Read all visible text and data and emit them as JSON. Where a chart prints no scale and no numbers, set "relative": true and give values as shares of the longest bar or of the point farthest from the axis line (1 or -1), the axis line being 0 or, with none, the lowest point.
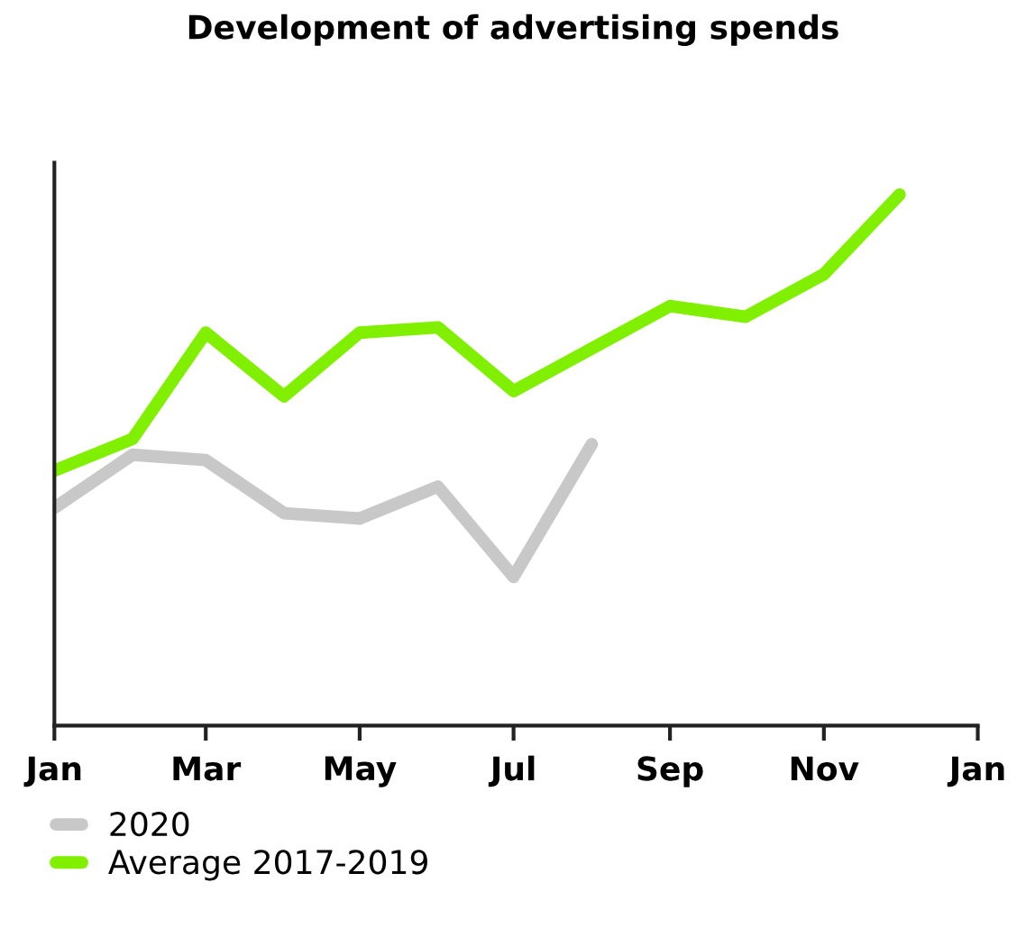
{
  "chart_data": {
    "type": "line",
    "title": "Development of advertising spends",
    "relative": true,
    "x": [
      "2020-01-01",
      "2020-02-01",
      "2020-03-01",
      "2020-04-01",
      "2020-05-01",
      "2020-06-01",
      "2020-07-01",
      "2020-08-01",
      "2020-09-01",
      "2020-10-01",
      "2020-11-01",
      "2020-12-01"
    ],
    "series": [
      {
        "name": "2020",
        "color": "#c8c8c8",
        "values": [
          0.41,
          0.51,
          0.5,
          0.4,
          0.39,
          0.45,
          0.28,
          0.53,
          null,
          null,
          null,
          null
        ]
      },
      {
        "name": "Average 2017-2019",
        "color": "#80f000",
        "values": [
          0.48,
          0.54,
          0.74,
          0.62,
          0.74,
          0.75,
          0.63,
          0.71,
          0.79,
          0.77,
          0.85,
          1
        ]
      }
    ],
    "xlim": [
      "2020-01-01",
      "2021-01-01"
    ],
    "xticks": [
      {
        "value": "2020-01-01",
        "label": "Jan"
      },
      {
        "value": "2020-03-01",
        "label": "Mar"
      },
      {
        "value": "2020-05-01",
        "label": "May"
      },
      {
        "value": "2020-07-01",
        "label": "Jul"
      },
      {
        "value": "2020-09-01",
        "label": "Sep"
      },
      {
        "value": "2020-11-01",
        "label": "Nov"
      },
      {
        "value": "2021-01-01",
        "label": "Jan"
      }
    ],
    "grid": false,
    "legend": "bottom left",
    "marker": "none",
    "line_style": "solid"
  }
}
